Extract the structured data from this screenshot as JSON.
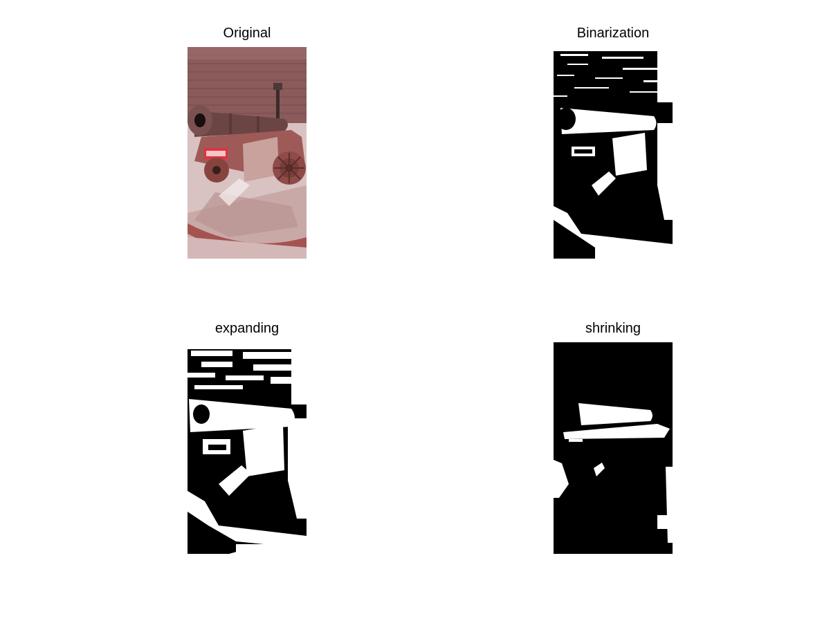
{
  "figure": {
    "panels": [
      {
        "id": "original",
        "title": "Original",
        "image": "color photo of an old cast-iron cannon on a wooden carriage with spoked wheels, in front of a red brick wall"
      },
      {
        "id": "binarization",
        "title": "Binarization",
        "image": "black-and-white thresholded version of the cannon photo"
      },
      {
        "id": "expanding",
        "title": "expanding",
        "image": "dilated binary image of the cannon"
      },
      {
        "id": "shrinking",
        "title": "shrinking",
        "image": "eroded binary image of the cannon"
      }
    ]
  }
}
